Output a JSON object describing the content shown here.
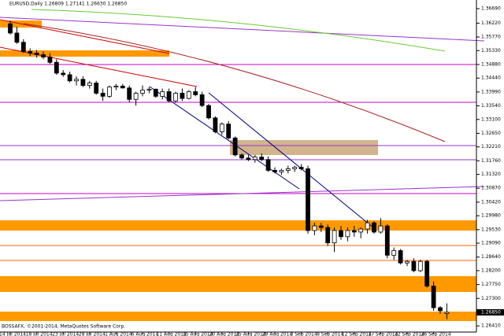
{
  "chart_data": {
    "type": "candlestick",
    "title": "EURUSD,Daily 1.26809 1.27141 1.26630 1.26850",
    "footer": "BOSSAFX, ©2001-2014, MetaQuotes Software Corp.",
    "categories": [
      "14 Jul 2014",
      null,
      null,
      null,
      "18 Jul 2014",
      null,
      null,
      null,
      "23 Jul 2014",
      null,
      null,
      null,
      "28 Jul 2014",
      null,
      null,
      null,
      "1 Aug 2014",
      null,
      null,
      null,
      "6 Aug 2014",
      null,
      null,
      null,
      "11 Aug 2014",
      null,
      null,
      null,
      "15 Aug 2014",
      null,
      null,
      null,
      "20 Aug 2014",
      null,
      null,
      null,
      "25 Aug 2014",
      null,
      null,
      null,
      "29 Aug 2014",
      null,
      null,
      null,
      "3 Sep 2014",
      null,
      null,
      null,
      "8 Sep 2014",
      null,
      null,
      null,
      "12 Sep 2014",
      null,
      null,
      null,
      "17 Sep 2014",
      null,
      null,
      null,
      "22 Sep 2014",
      null,
      null,
      null,
      "26 Sep 2014",
      null,
      null
    ],
    "open": [
      1.362,
      1.359,
      1.356,
      1.353,
      1.3525,
      1.352,
      1.3512,
      1.3495,
      1.346,
      1.3455,
      1.3435,
      1.344,
      1.342,
      1.3428,
      1.3395,
      1.3385,
      1.3415,
      1.3418,
      1.3412,
      1.3375,
      1.3395,
      1.3405,
      1.3408,
      1.3385,
      1.34,
      1.337,
      1.3395,
      1.3378,
      1.34,
      1.339,
      1.3355,
      1.3315,
      1.327,
      1.3295,
      1.325,
      1.3195,
      1.3185,
      1.318,
      1.3188,
      1.318,
      1.3145,
      1.314,
      1.3145,
      1.315,
      1.3155,
      1.315,
      1.295,
      1.2965,
      1.296,
      1.291,
      1.295,
      1.293,
      1.295,
      1.2945,
      1.2955,
      1.2975,
      1.2945,
      1.2965,
      1.287,
      1.2885,
      1.2845,
      1.285,
      1.282,
      1.285,
      1.277,
      1.27,
      1.2681
    ],
    "high": [
      1.363,
      1.361,
      1.357,
      1.354,
      1.3535,
      1.353,
      1.3525,
      1.3505,
      1.347,
      1.3465,
      1.345,
      1.345,
      1.3435,
      1.3435,
      1.341,
      1.342,
      1.3425,
      1.3425,
      1.342,
      1.34,
      1.342,
      1.3415,
      1.341,
      1.341,
      1.341,
      1.34,
      1.341,
      1.3405,
      1.3415,
      1.34,
      1.336,
      1.332,
      1.33,
      1.3305,
      1.3255,
      1.32,
      1.3195,
      1.3195,
      1.32,
      1.319,
      1.3155,
      1.315,
      1.316,
      1.316,
      1.3165,
      1.316,
      1.2975,
      1.2975,
      1.297,
      1.296,
      1.2965,
      1.296,
      1.2965,
      1.296,
      1.2985,
      1.298,
      1.299,
      1.297,
      1.2895,
      1.289,
      1.2855,
      1.286,
      1.2855,
      1.2855,
      1.2785,
      1.2705,
      1.2714
    ],
    "low": [
      1.3585,
      1.3555,
      1.3525,
      1.3515,
      1.351,
      1.3505,
      1.349,
      1.3455,
      1.3448,
      1.343,
      1.342,
      1.3415,
      1.341,
      1.339,
      1.337,
      1.338,
      1.3405,
      1.341,
      1.3365,
      1.3355,
      1.3385,
      1.3395,
      1.338,
      1.3375,
      1.3365,
      1.3365,
      1.337,
      1.3375,
      1.3385,
      1.335,
      1.331,
      1.3265,
      1.326,
      1.3245,
      1.319,
      1.318,
      1.3175,
      1.317,
      1.3175,
      1.314,
      1.3135,
      1.313,
      1.3135,
      1.314,
      1.3145,
      1.294,
      1.2935,
      1.2945,
      1.29,
      1.288,
      1.292,
      1.2915,
      1.293,
      1.2925,
      1.294,
      1.294,
      1.294,
      1.286,
      1.2855,
      1.284,
      1.2835,
      1.2815,
      1.2815,
      1.2765,
      1.269,
      1.268,
      1.2663
    ],
    "close": [
      1.359,
      1.356,
      1.353,
      1.3525,
      1.352,
      1.3512,
      1.3495,
      1.346,
      1.3455,
      1.3435,
      1.344,
      1.342,
      1.3428,
      1.3395,
      1.3385,
      1.3415,
      1.3418,
      1.3412,
      1.3375,
      1.3395,
      1.3405,
      1.3408,
      1.3385,
      1.34,
      1.337,
      1.3395,
      1.3378,
      1.34,
      1.339,
      1.3355,
      1.3315,
      1.327,
      1.3295,
      1.325,
      1.3195,
      1.3185,
      1.318,
      1.3188,
      1.318,
      1.3145,
      1.314,
      1.3145,
      1.315,
      1.3155,
      1.315,
      1.295,
      1.2965,
      1.296,
      1.291,
      1.295,
      1.293,
      1.295,
      1.2945,
      1.2955,
      1.2975,
      1.2945,
      1.2965,
      1.287,
      1.2885,
      1.2845,
      1.285,
      1.282,
      1.285,
      1.277,
      1.27,
      1.269,
      1.2685
    ],
    "ylim": [
      1.2621,
      1.3697
    ],
    "yticks": [
      {
        "value": 1.3669,
        "label": "1.36690"
      },
      {
        "value": 1.3622,
        "label": "1.36220"
      },
      {
        "value": 1.3577,
        "label": "1.35770"
      },
      {
        "value": 1.3533,
        "label": "1.35330"
      },
      {
        "value": 1.3488,
        "label": "1.34880"
      },
      {
        "value": 1.3444,
        "label": "1.34440"
      },
      {
        "value": 1.3399,
        "label": "1.33990"
      },
      {
        "value": 1.3354,
        "label": "1.33540"
      },
      {
        "value": 1.331,
        "label": "1.33100"
      },
      {
        "value": 1.3265,
        "label": "1.32650"
      },
      {
        "value": 1.3221,
        "label": "1.32210"
      },
      {
        "value": 1.3176,
        "label": "1.31760"
      },
      {
        "value": 1.3132,
        "label": "1.31320"
      },
      {
        "value": 1.3087,
        "label": "1.30870"
      },
      {
        "value": 1.3042,
        "label": "1.30420"
      },
      {
        "value": 1.2998,
        "label": "1.29980"
      },
      {
        "value": 1.2953,
        "label": "1.29530"
      },
      {
        "value": 1.2909,
        "label": "1.29090"
      },
      {
        "value": 1.2864,
        "label": "1.28640"
      },
      {
        "value": 1.282,
        "label": "1.28200"
      },
      {
        "value": 1.2775,
        "label": "1.27750"
      },
      {
        "value": 1.273,
        "label": "1.27300"
      },
      {
        "value": 1.2641,
        "label": "1.26410"
      }
    ],
    "current_price": {
      "value": 1.2685,
      "label": "1.26850"
    },
    "colors": {
      "bull": "#ffffff",
      "bear": "#000000",
      "outline": "#000000"
    }
  }
}
